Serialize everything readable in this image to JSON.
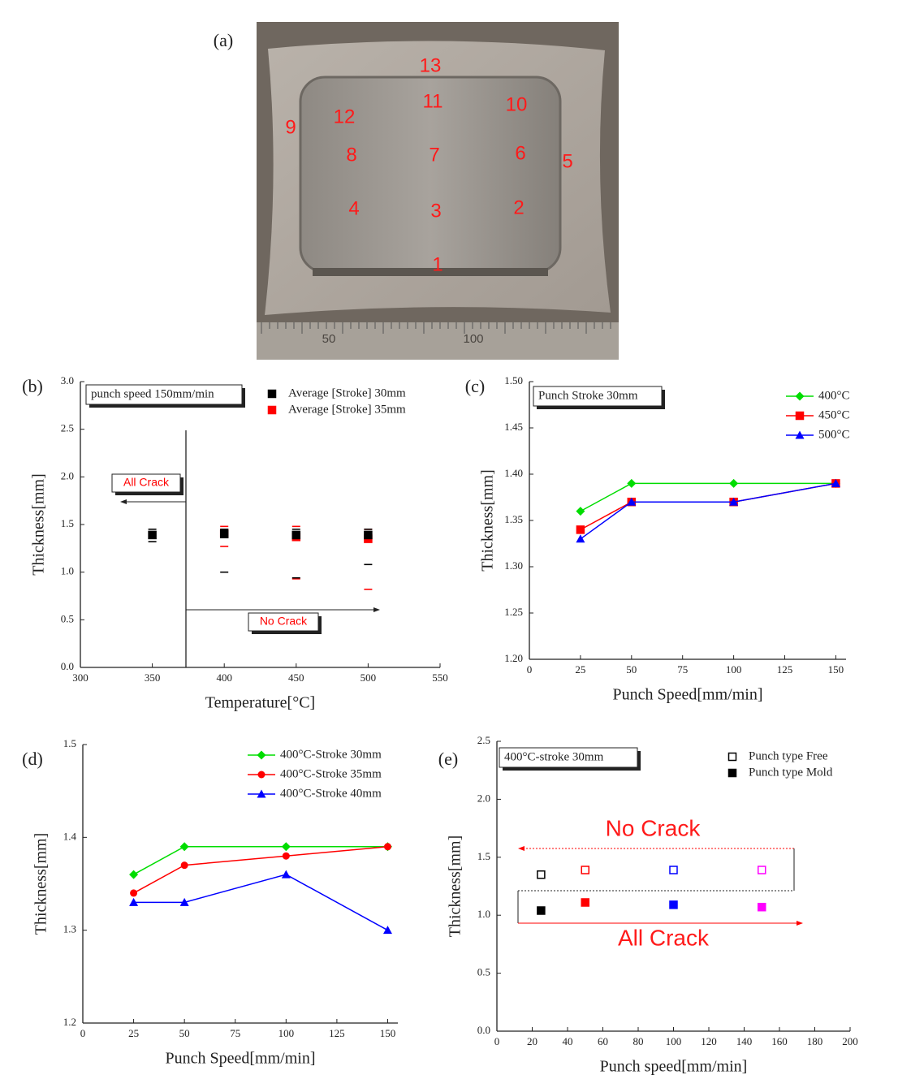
{
  "photo": {
    "label": "(a)",
    "numbers": [
      "13",
      "11",
      "10",
      "12",
      "9",
      "8",
      "7",
      "6",
      "5",
      "4",
      "3",
      "2",
      "1"
    ],
    "ruler_labels": [
      "50",
      "100"
    ]
  },
  "chart_data": [
    {
      "type": "scatter",
      "panel": "(b)",
      "title": "punch speed 150mm/min",
      "xlabel": "Temperature[°C]",
      "ylabel": "Thickness[mm]",
      "xlim": [
        300,
        550
      ],
      "xticks": [
        300,
        350,
        400,
        450,
        500,
        550
      ],
      "ylim": [
        0,
        3
      ],
      "yticks": [
        {
          "value": 0,
          "label": "0.0"
        },
        0.5,
        {
          "value": 1,
          "label": "1.0"
        },
        1.5,
        {
          "value": 2,
          "label": "2.0"
        },
        2.5,
        {
          "value": 3,
          "label": "3.0"
        }
      ],
      "legend": "upper right",
      "grid": false,
      "annotations": [
        "All Crack",
        "No Crack"
      ],
      "series": [
        {
          "name": "Average [Stroke] 30mm",
          "color": "#000000",
          "marker": "square",
          "x": [
            350,
            400,
            450,
            500
          ],
          "values": [
            1.39,
            1.4,
            1.39,
            1.39
          ],
          "max": [
            1.45,
            1.45,
            1.45,
            1.45
          ],
          "min": [
            1.32,
            1.0,
            0.94,
            1.08
          ]
        },
        {
          "name": "Average [Stroke] 35mm",
          "color": "#ff0000",
          "marker": "square",
          "x": [
            400,
            450,
            500
          ],
          "values": [
            1.41,
            1.37,
            1.35
          ],
          "max": [
            1.48,
            1.48,
            1.45
          ],
          "min": [
            1.27,
            0.93,
            0.82
          ]
        }
      ]
    },
    {
      "type": "line",
      "panel": "(c)",
      "title": "Punch Stroke 30mm",
      "xlabel": "Punch Speed[mm/min]",
      "ylabel": "Thickness[mm]",
      "xlim": [
        0,
        155
      ],
      "xticks": [
        0,
        25,
        50,
        75,
        100,
        125,
        150
      ],
      "ylim": [
        1.2,
        1.5
      ],
      "yticks": [
        {
          "value": 1.2,
          "label": "1.20"
        },
        1.25,
        {
          "value": 1.3,
          "label": "1.30"
        },
        1.35,
        {
          "value": 1.4,
          "label": "1.40"
        },
        1.45,
        {
          "value": 1.5,
          "label": "1.50"
        }
      ],
      "legend": "upper right",
      "grid": false,
      "series": [
        {
          "name": "400°C",
          "color": "#00dd00",
          "marker": "diamond",
          "x": [
            25,
            50,
            100,
            150
          ],
          "values": [
            1.36,
            1.39,
            1.39,
            1.39
          ]
        },
        {
          "name": "450°C",
          "color": "#ff0000",
          "marker": "square",
          "x": [
            25,
            50,
            100,
            150
          ],
          "values": [
            1.34,
            1.37,
            1.37,
            1.39
          ]
        },
        {
          "name": "500°C",
          "color": "#0000ff",
          "marker": "triangle",
          "x": [
            25,
            50,
            100,
            150
          ],
          "values": [
            1.33,
            1.37,
            1.37,
            1.39
          ]
        }
      ]
    },
    {
      "type": "line",
      "panel": "(d)",
      "xlabel": "Punch Speed[mm/min]",
      "ylabel": "Thickness[mm]",
      "xlim": [
        0,
        155
      ],
      "xticks": [
        0,
        25,
        50,
        75,
        100,
        125,
        150
      ],
      "ylim": [
        1.2,
        1.5
      ],
      "yticks": [
        1.2,
        1.3,
        1.4,
        1.5
      ],
      "legend": "upper right",
      "grid": false,
      "series": [
        {
          "name": "400°C-Stroke 30mm",
          "color": "#00dd00",
          "marker": "diamond",
          "x": [
            25,
            50,
            100,
            150
          ],
          "values": [
            1.36,
            1.39,
            1.39,
            1.39
          ]
        },
        {
          "name": "400°C-Stroke 35mm",
          "color": "#ff0000",
          "marker": "circle",
          "x": [
            25,
            50,
            100,
            150
          ],
          "values": [
            1.34,
            1.37,
            1.38,
            1.39
          ]
        },
        {
          "name": "400°C-Stroke 40mm",
          "color": "#0000ff",
          "marker": "triangle",
          "x": [
            25,
            50,
            100,
            150
          ],
          "values": [
            1.33,
            1.33,
            1.36,
            1.3
          ]
        }
      ]
    },
    {
      "type": "scatter",
      "panel": "(e)",
      "title": "400°C-stroke 30mm",
      "xlabel": "Punch speed[mm/min]",
      "ylabel": "Thickness[mm]",
      "xlim": [
        0,
        200
      ],
      "xticks": [
        0,
        20,
        40,
        60,
        80,
        100,
        120,
        140,
        160,
        180,
        200
      ],
      "ylim": [
        0,
        2.5
      ],
      "yticks": [
        {
          "value": 0,
          "label": "0.0"
        },
        0.5,
        {
          "value": 1,
          "label": "1.0"
        },
        1.5,
        {
          "value": 2,
          "label": "2.0"
        },
        2.5
      ],
      "legend": "upper right",
      "grid": false,
      "annotations": [
        "No Crack",
        "All Crack"
      ],
      "series": [
        {
          "name": "Punch type Free",
          "color": "#000000",
          "marker": "open-square",
          "x": [
            25,
            50,
            100,
            150
          ],
          "values": [
            1.35,
            1.39,
            1.39,
            1.39
          ],
          "point_colors": [
            "#000000",
            "#ff0000",
            "#0000ff",
            "#ff00ff"
          ]
        },
        {
          "name": "Punch type Mold",
          "color": "#000000",
          "marker": "square",
          "x": [
            25,
            50,
            100,
            150
          ],
          "values": [
            1.04,
            1.11,
            1.09,
            1.07
          ],
          "point_colors": [
            "#000000",
            "#ff0000",
            "#0000ff",
            "#ff00ff"
          ]
        }
      ]
    }
  ]
}
